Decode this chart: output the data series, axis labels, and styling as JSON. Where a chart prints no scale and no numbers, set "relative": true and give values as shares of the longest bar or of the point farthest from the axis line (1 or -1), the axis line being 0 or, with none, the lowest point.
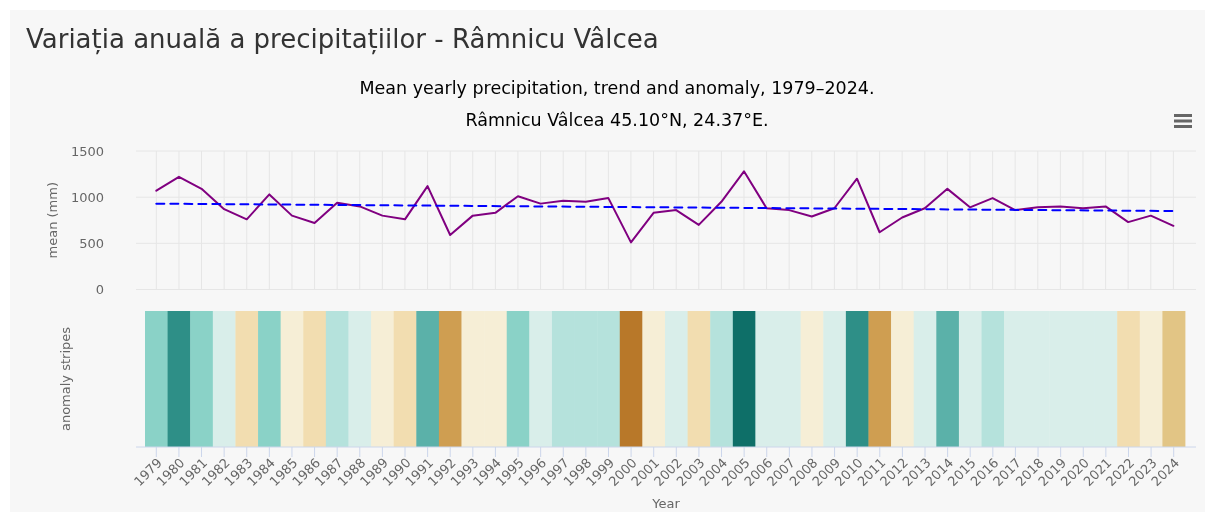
{
  "chart_data": [
    {
      "type": "line",
      "title": "Variația anuală a precipitațiilor - Râmnicu Vâlcea",
      "subtitle": "Mean yearly precipitation, trend and anomaly, 1979–2024.",
      "annotations": [
        "Râmnicu Vâlcea 45.10°N, 24.37°E."
      ],
      "ylabel": "mean (mm)",
      "x": [
        1979,
        1980,
        1981,
        1982,
        1983,
        1984,
        1985,
        1986,
        1987,
        1988,
        1989,
        1990,
        1991,
        1992,
        1993,
        1994,
        1995,
        1996,
        1997,
        1998,
        1999,
        2000,
        2001,
        2002,
        2003,
        2004,
        2005,
        2006,
        2007,
        2008,
        2009,
        2010,
        2011,
        2012,
        2013,
        2014,
        2015,
        2016,
        2017,
        2018,
        2019,
        2020,
        2021,
        2022,
        2023,
        2024
      ],
      "series": [
        {
          "color": "#800080",
          "values": [
            1070,
            1220,
            1090,
            870,
            760,
            1030,
            800,
            720,
            940,
            900,
            800,
            760,
            1120,
            590,
            800,
            830,
            1010,
            930,
            960,
            950,
            990,
            510,
            830,
            860,
            700,
            950,
            1280,
            880,
            860,
            790,
            880,
            1200,
            620,
            780,
            880,
            1090,
            890,
            990,
            860,
            890,
            900,
            880,
            900,
            730,
            800,
            690
          ]
        },
        {
          "type": "line",
          "x": [
            1979,
            2024
          ],
          "values": [
            930,
            850
          ],
          "color": "#0000ff",
          "line_style": "dashed"
        }
      ],
      "xlim": [
        1978.1,
        2025
      ],
      "xticks": [
        1979,
        1980,
        1981,
        1982,
        1983,
        1984,
        1985,
        1986,
        1987,
        1988,
        1989,
        1990,
        1991,
        1992,
        1993,
        1994,
        1995,
        1996,
        1997,
        1998,
        1999,
        2000,
        2001,
        2002,
        2003,
        2004,
        2005,
        2006,
        2007,
        2008,
        2009,
        2010,
        2011,
        2012,
        2013,
        2014,
        2015,
        2016,
        2017,
        2018,
        2019,
        2020,
        2021,
        2022,
        2023,
        2024
      ],
      "ylim": [
        0,
        1500
      ],
      "yticks": [
        0,
        500,
        1000,
        1500
      ],
      "grid": true,
      "tick_labels": "y"
    },
    {
      "type": "bar",
      "xlabel": "Year",
      "ylabel": "anomaly stripes",
      "relative": true,
      "categories": [
        "1979",
        "1980",
        "1981",
        "1982",
        "1983",
        "1984",
        "1985",
        "1986",
        "1987",
        "1988",
        "1989",
        "1990",
        "1991",
        "1992",
        "1993",
        "1994",
        "1995",
        "1996",
        "1997",
        "1998",
        "1999",
        "2000",
        "2001",
        "2002",
        "2003",
        "2004",
        "2005",
        "2006",
        "2007",
        "2008",
        "2009",
        "2010",
        "2011",
        "2012",
        "2013",
        "2014",
        "2015",
        "2016",
        "2017",
        "2018",
        "2019",
        "2020",
        "2021",
        "2022",
        "2023",
        "2024"
      ],
      "values": [
        1,
        1,
        1,
        1,
        1,
        1,
        1,
        1,
        1,
        1,
        1,
        1,
        1,
        1,
        1,
        1,
        1,
        1,
        1,
        1,
        1,
        1,
        1,
        1,
        1,
        1,
        1,
        1,
        1,
        1,
        1,
        1,
        1,
        1,
        1,
        1,
        1,
        1,
        1,
        1,
        1,
        1,
        1,
        1,
        1,
        1
      ],
      "colors": [
        "#8ad2c7",
        "#2e8f87",
        "#8ad2c7",
        "#d9eeea",
        "#f2ddb0",
        "#8ad2c7",
        "#f6eed6",
        "#f2ddb0",
        "#b5e2dc",
        "#d9eeea",
        "#f6eed6",
        "#f2ddb0",
        "#5bb1a9",
        "#cf9e51",
        "#f6eed6",
        "#f6eed6",
        "#8ad2c7",
        "#d9eeea",
        "#b5e2dc",
        "#b5e2dc",
        "#b5e2dc",
        "#b87829",
        "#f6eed6",
        "#d9eeea",
        "#f2ddb0",
        "#b5e2dc",
        "#0e6f68",
        "#d9eeea",
        "#d9eeea",
        "#f6eed6",
        "#d9eeea",
        "#2e8f87",
        "#cf9e51",
        "#f6eed6",
        "#d9eeea",
        "#5bb1a9",
        "#d9eeea",
        "#b5e2dc",
        "#d9eeea",
        "#d9eeea",
        "#d9eeea",
        "#d9eeea",
        "#d9eeea",
        "#f2ddb0",
        "#f6eed6",
        "#e2c585"
      ]
    }
  ]
}
